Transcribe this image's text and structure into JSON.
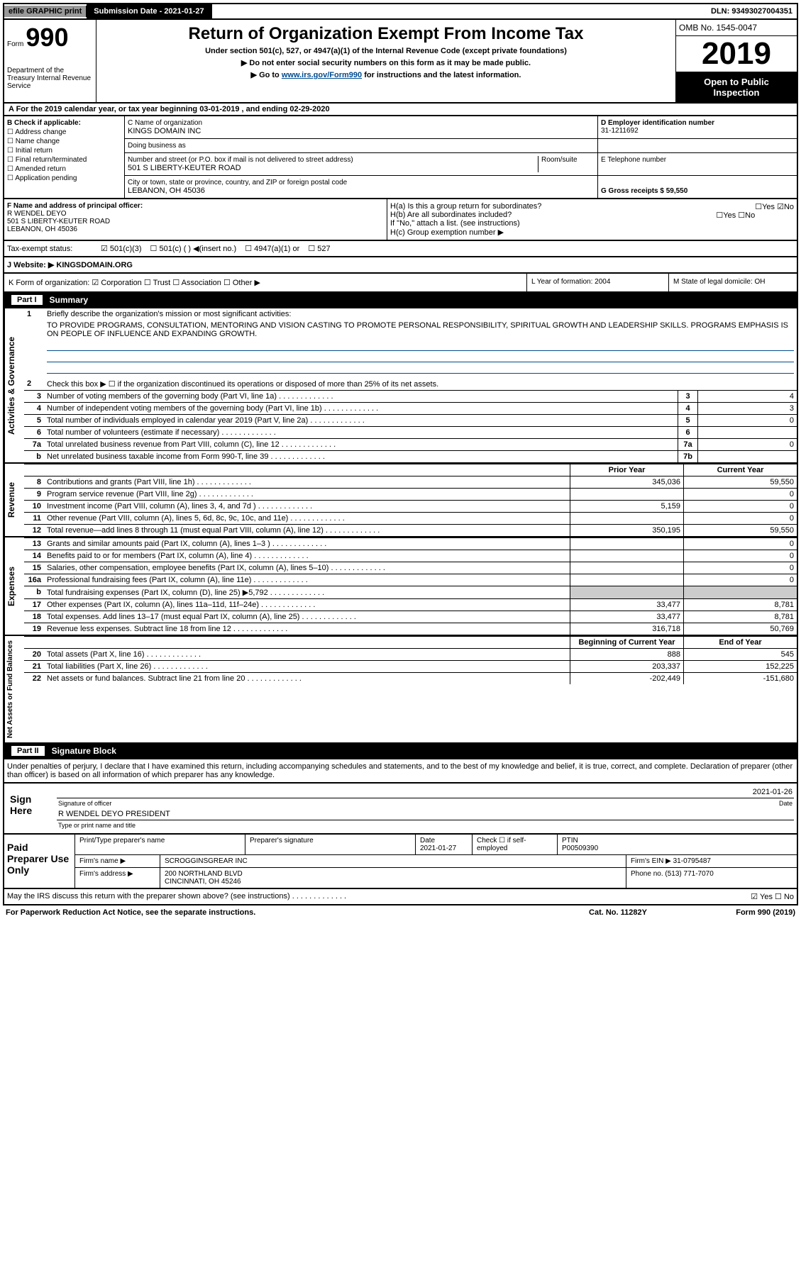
{
  "topbar": {
    "efile": "efile GRAPHIC print",
    "submission_label": "Submission Date - 2021-01-27",
    "dln": "DLN: 93493027004351"
  },
  "header": {
    "form_label": "Form",
    "form_number": "990",
    "title": "Return of Organization Exempt From Income Tax",
    "subtitle": "Under section 501(c), 527, or 4947(a)(1) of the Internal Revenue Code (except private foundations)",
    "sub2": "▶ Do not enter social security numbers on this form as it may be made public.",
    "sub3_pre": "▶ Go to ",
    "sub3_link": "www.irs.gov/Form990",
    "sub3_post": " for instructions and the latest information.",
    "omb": "OMB No. 1545-0047",
    "year": "2019",
    "open": "Open to Public Inspection",
    "dept": "Department of the Treasury\nInternal Revenue Service"
  },
  "rowA": "A   For the 2019 calendar year, or tax year beginning 03-01-2019    , and ending 02-29-2020",
  "colB": {
    "label": "B Check if applicable:",
    "items": [
      "Address change",
      "Name change",
      "Initial return",
      "Final return/terminated",
      "Amended return",
      "Application pending"
    ]
  },
  "colC": {
    "name_lbl": "C Name of organization",
    "name": "KINGS DOMAIN INC",
    "dba_lbl": "Doing business as",
    "dba": "",
    "addr_lbl": "Number and street (or P.O. box if mail is not delivered to street address)",
    "room_lbl": "Room/suite",
    "addr": "501 S LIBERTY-KEUTER ROAD",
    "city_lbl": "City or town, state or province, country, and ZIP or foreign postal code",
    "city": "LEBANON, OH  45036"
  },
  "colD": {
    "ein_lbl": "D Employer identification number",
    "ein": "31-1211692",
    "tel_lbl": "E Telephone number",
    "tel": "",
    "gross_lbl": "G Gross receipts $ 59,550"
  },
  "rowF": {
    "lbl": "F  Name and address of principal officer:",
    "name": "R WENDEL DEYO",
    "addr": "501 S LIBERTY-KEUTER ROAD",
    "city": "LEBANON, OH  45036"
  },
  "rowH": {
    "ha": "H(a)  Is this a group return for subordinates?",
    "hb": "H(b)  Are all subordinates included?",
    "hb2": "If \"No,\" attach a list. (see instructions)",
    "hc": "H(c)  Group exemption number ▶",
    "yes": "Yes",
    "no": "No"
  },
  "rowTax": {
    "lbl": "Tax-exempt status:",
    "o1": "501(c)(3)",
    "o2": "501(c) (  ) ◀(insert no.)",
    "o3": "4947(a)(1) or",
    "o4": "527"
  },
  "rowJ": {
    "lbl": "J   Website: ▶",
    "val": "KINGSDOMAIN.ORG"
  },
  "rowK": {
    "lbl": "K Form of organization:",
    "o1": "Corporation",
    "o2": "Trust",
    "o3": "Association",
    "o4": "Other ▶"
  },
  "rowL": {
    "lbl": "L Year of formation: 2004"
  },
  "rowM": {
    "lbl": "M State of legal domicile: OH"
  },
  "part1": {
    "num": "Part I",
    "title": "Summary"
  },
  "mission": {
    "lbl": "Briefly describe the organization's mission or most significant activities:",
    "txt": "TO PROVIDE PROGRAMS, CONSULTATION, MENTORING AND VISION CASTING TO PROMOTE PERSONAL RESPONSIBILITY, SPIRITUAL GROWTH AND LEADERSHIP SKILLS. PROGRAMS EMPHASIS IS ON PEOPLE OF INFLUENCE AND EXPANDING GROWTH."
  },
  "activities": {
    "l2": "Check this box ▶ ☐  if the organization discontinued its operations or disposed of more than 25% of its net assets.",
    "rows": [
      {
        "n": "3",
        "t": "Number of voting members of the governing body (Part VI, line 1a)",
        "b": "3",
        "v": "4"
      },
      {
        "n": "4",
        "t": "Number of independent voting members of the governing body (Part VI, line 1b)",
        "b": "4",
        "v": "3"
      },
      {
        "n": "5",
        "t": "Total number of individuals employed in calendar year 2019 (Part V, line 2a)",
        "b": "5",
        "v": "0"
      },
      {
        "n": "6",
        "t": "Total number of volunteers (estimate if necessary)",
        "b": "6",
        "v": ""
      },
      {
        "n": "7a",
        "t": "Total unrelated business revenue from Part VIII, column (C), line 12",
        "b": "7a",
        "v": "0"
      },
      {
        "n": "b",
        "t": "Net unrelated business taxable income from Form 990-T, line 39",
        "b": "7b",
        "v": ""
      }
    ]
  },
  "yearhdr": {
    "prior": "Prior Year",
    "curr": "Current Year"
  },
  "revenue": [
    {
      "n": "8",
      "t": "Contributions and grants (Part VIII, line 1h)",
      "p": "345,036",
      "c": "59,550"
    },
    {
      "n": "9",
      "t": "Program service revenue (Part VIII, line 2g)",
      "p": "",
      "c": "0"
    },
    {
      "n": "10",
      "t": "Investment income (Part VIII, column (A), lines 3, 4, and 7d )",
      "p": "5,159",
      "c": "0"
    },
    {
      "n": "11",
      "t": "Other revenue (Part VIII, column (A), lines 5, 6d, 8c, 9c, 10c, and 11e)",
      "p": "",
      "c": "0"
    },
    {
      "n": "12",
      "t": "Total revenue—add lines 8 through 11 (must equal Part VIII, column (A), line 12)",
      "p": "350,195",
      "c": "59,550"
    }
  ],
  "expenses": [
    {
      "n": "13",
      "t": "Grants and similar amounts paid (Part IX, column (A), lines 1–3 )",
      "p": "",
      "c": "0"
    },
    {
      "n": "14",
      "t": "Benefits paid to or for members (Part IX, column (A), line 4)",
      "p": "",
      "c": "0"
    },
    {
      "n": "15",
      "t": "Salaries, other compensation, employee benefits (Part IX, column (A), lines 5–10)",
      "p": "",
      "c": "0"
    },
    {
      "n": "16a",
      "t": "Professional fundraising fees (Part IX, column (A), line 11e)",
      "p": "",
      "c": "0"
    },
    {
      "n": "b",
      "t": "Total fundraising expenses (Part IX, column (D), line 25) ▶5,792",
      "p": "GREY",
      "c": "GREY"
    },
    {
      "n": "17",
      "t": "Other expenses (Part IX, column (A), lines 11a–11d, 11f–24e)",
      "p": "33,477",
      "c": "8,781"
    },
    {
      "n": "18",
      "t": "Total expenses. Add lines 13–17 (must equal Part IX, column (A), line 25)",
      "p": "33,477",
      "c": "8,781"
    },
    {
      "n": "19",
      "t": "Revenue less expenses. Subtract line 18 from line 12",
      "p": "316,718",
      "c": "50,769"
    }
  ],
  "nethdr": {
    "beg": "Beginning of Current Year",
    "end": "End of Year"
  },
  "netassets": [
    {
      "n": "20",
      "t": "Total assets (Part X, line 16)",
      "p": "888",
      "c": "545"
    },
    {
      "n": "21",
      "t": "Total liabilities (Part X, line 26)",
      "p": "203,337",
      "c": "152,225"
    },
    {
      "n": "22",
      "t": "Net assets or fund balances. Subtract line 21 from line 20",
      "p": "-202,449",
      "c": "-151,680"
    }
  ],
  "sidelabels": {
    "act": "Activities & Governance",
    "rev": "Revenue",
    "exp": "Expenses",
    "net": "Net Assets or\nFund Balances"
  },
  "part2": {
    "num": "Part II",
    "title": "Signature Block"
  },
  "penalty": "Under penalties of perjury, I declare that I have examined this return, including accompanying schedules and statements, and to the best of my knowledge and belief, it is true, correct, and complete. Declaration of preparer (other than officer) is based on all information of which preparer has any knowledge.",
  "sign": {
    "here": "Sign Here",
    "sig_lbl": "Signature of officer",
    "date_lbl": "Date",
    "date": "2021-01-26",
    "name": "R WENDEL DEYO  PRESIDENT",
    "name_lbl": "Type or print name and title"
  },
  "paid": {
    "lbl": "Paid Preparer Use Only",
    "h1": "Print/Type preparer's name",
    "h2": "Preparer's signature",
    "h3": "Date",
    "h3v": "2021-01-27",
    "h4": "Check ☐ if self-employed",
    "h5": "PTIN",
    "h5v": "P00509390",
    "firm_lbl": "Firm's name  ▶",
    "firm": "SCROGGINSGREAR INC",
    "ein_lbl": "Firm's EIN ▶",
    "ein": "31-0795487",
    "addr_lbl": "Firm's address ▶",
    "addr": "200 NORTHLAND BLVD",
    "city": "CINCINNATI, OH  45246",
    "ph_lbl": "Phone no.",
    "ph": "(513) 771-7070"
  },
  "discuss": "May the IRS discuss this return with the preparer shown above? (see instructions)",
  "bottom": {
    "b1": "For Paperwork Reduction Act Notice, see the separate instructions.",
    "b2": "Cat. No. 11282Y",
    "b3": "Form 990 (2019)"
  }
}
